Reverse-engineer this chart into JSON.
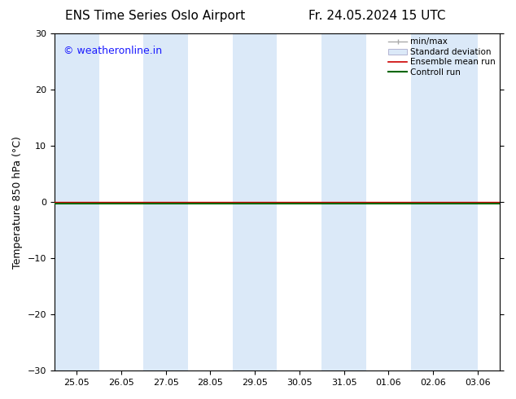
{
  "title_left": "ENS Time Series Oslo Airport",
  "title_right": "Fr. 24.05.2024 15 UTC",
  "ylabel": "Temperature 850 hPa (°C)",
  "watermark": "© weatheronline.in",
  "watermark_color": "#1a1aff",
  "ylim": [
    -30,
    30
  ],
  "yticks": [
    -30,
    -20,
    -10,
    0,
    10,
    20,
    30
  ],
  "x_tick_labels": [
    "25.05",
    "26.05",
    "27.05",
    "28.05",
    "29.05",
    "30.05",
    "31.05",
    "01.06",
    "02.06",
    "03.06"
  ],
  "x_tick_positions": [
    0,
    1,
    2,
    3,
    4,
    5,
    6,
    7,
    8,
    9
  ],
  "shaded_bands": [
    [
      0.0,
      1.0
    ],
    [
      2.0,
      3.0
    ],
    [
      4.0,
      5.0
    ],
    [
      6.0,
      7.0
    ],
    [
      8.0,
      9.5
    ]
  ],
  "shaded_color": "#dbe9f8",
  "control_run_color": "#006600",
  "ensemble_mean_color": "#cc0000",
  "minmax_color": "#aaaaaa",
  "stddev_color": "#c8ddf0",
  "background_color": "#ffffff",
  "legend_labels": [
    "min/max",
    "Standard deviation",
    "Ensemble mean run",
    "Controll run"
  ],
  "legend_line_colors": [
    "#aaaaaa",
    "#c8ddf0",
    "#cc0000",
    "#006600"
  ],
  "spine_color": "#000000",
  "title_fontsize": 11,
  "tick_fontsize": 8,
  "ylabel_fontsize": 9,
  "watermark_fontsize": 9,
  "x_min": -0.5,
  "x_max": 9.5
}
